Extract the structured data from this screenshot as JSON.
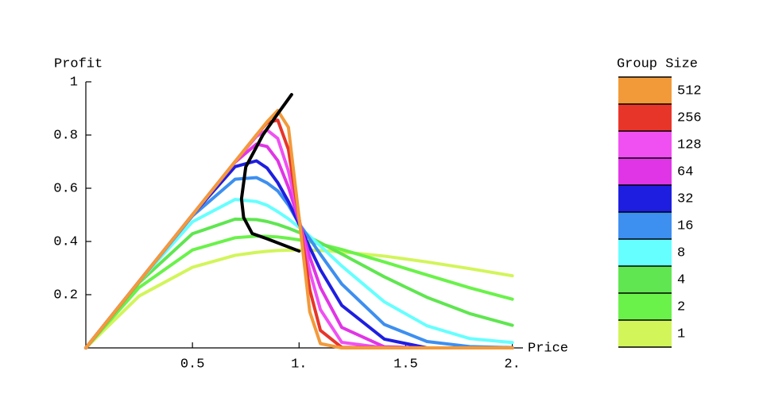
{
  "chart_data": {
    "type": "line",
    "x_label": "Price",
    "y_label": "Profit",
    "legend_title": "Group Size",
    "legend_position": "right",
    "xlim": [
      0,
      2.05
    ],
    "ylim": [
      0,
      1
    ],
    "xticks": [
      0.5,
      {
        "value": 1,
        "label": "1."
      },
      1.5,
      {
        "value": 2,
        "label": "2."
      }
    ],
    "yticks": [
      0.2,
      0.4,
      0.6,
      0.8,
      1
    ],
    "x": [
      0,
      0.25,
      0.5,
      0.7,
      0.8,
      0.85,
      0.9,
      0.95,
      1,
      1.05,
      1.1,
      1.2,
      1.4,
      1.6,
      1.8,
      2
    ],
    "series": [
      {
        "name": "1",
        "color": "#d2f55a",
        "values": [
          0,
          0.195,
          0.303,
          0.348,
          0.359,
          0.363,
          0.366,
          0.367,
          0.368,
          0.367,
          0.366,
          0.361,
          0.345,
          0.323,
          0.298,
          0.271
        ]
      },
      {
        "name": "2",
        "color": "#6af24a",
        "values": [
          0,
          0.227,
          0.368,
          0.414,
          0.42,
          0.419,
          0.417,
          0.412,
          0.406,
          0.399,
          0.39,
          0.37,
          0.323,
          0.274,
          0.226,
          0.183
        ]
      },
      {
        "name": "4",
        "color": "#5fe650",
        "values": [
          0,
          0.245,
          0.429,
          0.484,
          0.482,
          0.475,
          0.464,
          0.45,
          0.434,
          0.415,
          0.395,
          0.353,
          0.267,
          0.19,
          0.129,
          0.085
        ]
      },
      {
        "name": "8",
        "color": "#66ffff",
        "values": [
          0,
          0.25,
          0.474,
          0.558,
          0.55,
          0.536,
          0.512,
          0.485,
          0.453,
          0.42,
          0.383,
          0.308,
          0.173,
          0.083,
          0.035,
          0.02
        ]
      },
      {
        "name": "16",
        "color": "#3d8ff0",
        "values": [
          0,
          0.25,
          0.496,
          0.634,
          0.64,
          0.62,
          0.59,
          0.537,
          0.467,
          0.41,
          0.352,
          0.24,
          0.088,
          0.024,
          0.005,
          0.001
        ]
      },
      {
        "name": "32",
        "color": "#1e1ee0",
        "values": [
          0,
          0.25,
          0.5,
          0.681,
          0.703,
          0.676,
          0.621,
          0.55,
          0.465,
          0.377,
          0.294,
          0.16,
          0.033,
          0,
          0,
          0
        ]
      },
      {
        "name": "64",
        "color": "#e035e6",
        "values": [
          0,
          0.25,
          0.5,
          0.698,
          0.766,
          0.757,
          0.704,
          0.604,
          0.476,
          0.342,
          0.227,
          0.077,
          0.004,
          0,
          0,
          0
        ]
      },
      {
        "name": "128",
        "color": "#f050f2",
        "values": [
          0,
          0.25,
          0.5,
          0.7,
          0.795,
          0.819,
          0.787,
          0.665,
          0.484,
          0.288,
          0.144,
          0.021,
          0,
          0,
          0,
          0
        ]
      },
      {
        "name": "256",
        "color": "#e8352a",
        "values": [
          0,
          0.25,
          0.5,
          0.7,
          0.8,
          0.846,
          0.856,
          0.746,
          0.488,
          0.219,
          0.066,
          0.002,
          0,
          0,
          0,
          0
        ]
      },
      {
        "name": "512",
        "color": "#f29a3a",
        "values": [
          0,
          0.25,
          0.5,
          0.7,
          0.8,
          0.85,
          0.892,
          0.829,
          0.49,
          0.136,
          0.016,
          0,
          0,
          0,
          0,
          0
        ]
      }
    ],
    "optimum_curve": {
      "color": "#000000",
      "x": [
        0.965,
        0.9,
        0.83,
        0.75,
        0.73,
        0.74,
        0.78,
        0.85,
        1.0
      ],
      "values": [
        0.952,
        0.88,
        0.8,
        0.68,
        0.56,
        0.49,
        0.43,
        0.41,
        0.364
      ]
    }
  }
}
